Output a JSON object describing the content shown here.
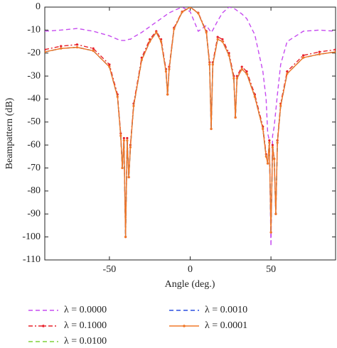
{
  "chart_data": {
    "type": "line",
    "x_label": "Angle (deg.)",
    "y_label": "Beampattern (dB)",
    "xlim": [
      -90,
      90
    ],
    "ylim": [
      -110,
      0
    ],
    "xticks": [
      -50,
      0,
      50
    ],
    "yticks": [
      0,
      -10,
      -20,
      -30,
      -40,
      -50,
      -60,
      -70,
      -80,
      -90,
      -100,
      -110
    ],
    "x": [
      -90,
      -80,
      -70,
      -60,
      -50,
      -45,
      -43,
      -42,
      -41,
      -40,
      -39,
      -38,
      -37,
      -35,
      -30,
      -25,
      -21,
      -18,
      -15,
      -14,
      -13,
      -10,
      -5,
      0,
      5,
      10,
      12,
      13,
      14,
      17,
      20,
      24,
      27,
      28,
      29,
      32,
      35,
      40,
      45,
      47,
      48,
      49,
      50,
      51,
      52,
      53,
      54,
      56,
      60,
      70,
      80,
      90
    ],
    "series": [
      {
        "name": "λ = 0.0000",
        "color": "#c64bf0",
        "linestyle": "dashed",
        "marker": false,
        "values": [
          -10.5,
          -10,
          -9.3,
          -10.5,
          -12.5,
          -14,
          -14.5,
          -14.5,
          -14.5,
          -14.5,
          -14.5,
          -14,
          -14,
          -13,
          -11,
          -8.5,
          -6.5,
          -5,
          -3.5,
          -3,
          -2.5,
          -1.5,
          0,
          -2,
          -10.5,
          -8,
          -10,
          -11,
          -10,
          -6,
          -2.5,
          0,
          -0.5,
          -1,
          -1.5,
          -3,
          -5,
          -12,
          -28,
          -40,
          -55,
          -58,
          -104,
          -56,
          -52,
          -45,
          -38,
          -25,
          -15,
          -10.5,
          -10,
          -10.5
        ]
      },
      {
        "name": "λ = 0.1000",
        "color": "#e8202a",
        "linestyle": "dashdot",
        "marker": true,
        "values": [
          -18.5,
          -17,
          -16.3,
          -18,
          -25,
          -38,
          -55,
          -70,
          -57,
          -100,
          -57,
          -74,
          -60,
          -42,
          -22,
          -14,
          -10.5,
          -14,
          -27,
          -38,
          -26,
          -9,
          -2,
          0,
          -2.5,
          -10.5,
          -24,
          -53,
          -24,
          -13,
          -14,
          -20,
          -30,
          -48,
          -30,
          -26,
          -28,
          -38,
          -52,
          -64,
          -68,
          -58,
          -98,
          -60,
          -66,
          -90,
          -58,
          -42,
          -28,
          -21,
          -19.5,
          -18.5
        ]
      },
      {
        "name": "λ = 0.0100",
        "color": "#7fd03a",
        "linestyle": "dashed",
        "marker": false,
        "values": [
          -19.5,
          -18,
          -17.5,
          -19,
          -26,
          -39,
          -56,
          -70,
          -58,
          -100,
          -58,
          -74,
          -61,
          -43,
          -23,
          -15,
          -11,
          -15,
          -28,
          -38,
          -27,
          -9.5,
          -2.2,
          0,
          -2.7,
          -11,
          -25,
          -53,
          -25,
          -14,
          -15,
          -21,
          -31,
          -48,
          -31,
          -27,
          -29,
          -39,
          -53,
          -65,
          -68,
          -59,
          -98,
          -61,
          -66,
          -90,
          -59,
          -43,
          -29,
          -22,
          -20.5,
          -19.5
        ]
      },
      {
        "name": "λ = 0.0010",
        "color": "#2a4fe0",
        "linestyle": "dashed",
        "marker": false,
        "values": [
          -19.5,
          -18,
          -17.5,
          -19,
          -26,
          -39,
          -56,
          -70,
          -58,
          -100,
          -58,
          -74,
          -61,
          -43,
          -23,
          -15,
          -11,
          -15,
          -28,
          -38,
          -27,
          -9.5,
          -2.2,
          0,
          -2.7,
          -11,
          -25,
          -53,
          -25,
          -14,
          -15,
          -21,
          -31,
          -48,
          -31,
          -27,
          -29,
          -39,
          -53,
          -65,
          -68,
          -59,
          -98,
          -61,
          -66,
          -90,
          -59,
          -43,
          -29,
          -22,
          -20.5,
          -19.5
        ]
      },
      {
        "name": "λ = 0.0001",
        "color": "#f07828",
        "linestyle": "solid",
        "marker": true,
        "values": [
          -19.5,
          -18,
          -17.5,
          -19,
          -26,
          -39,
          -56,
          -70,
          -58,
          -100,
          -58,
          -74,
          -61,
          -43,
          -23,
          -15,
          -11,
          -15,
          -28,
          -38,
          -27,
          -9.5,
          -2.2,
          0,
          -2.7,
          -11,
          -25,
          -53,
          -25,
          -14,
          -15,
          -21,
          -31,
          -48,
          -31,
          -27,
          -29,
          -39,
          -53,
          -65,
          -68,
          -59,
          -98,
          -61,
          -66,
          -90,
          -59,
          -43,
          -29,
          -22,
          -20.5,
          -19.5
        ]
      }
    ]
  }
}
